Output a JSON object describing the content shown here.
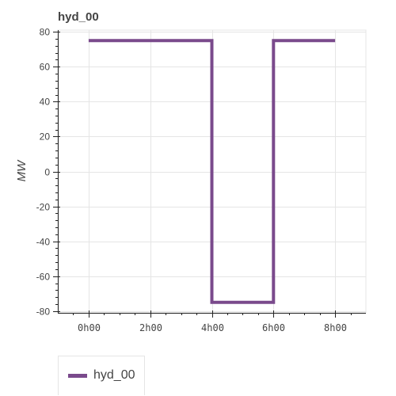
{
  "chart_data": {
    "type": "line",
    "title": "hyd_00",
    "xlabel": "",
    "ylabel": "MW",
    "x_tick_labels": [
      "0h00",
      "2h00",
      "4h00",
      "6h00",
      "8h00"
    ],
    "x_ticks_hours": [
      0,
      2,
      4,
      6,
      8
    ],
    "y_tick_labels": [
      "80",
      "60",
      "40",
      "20",
      "0",
      "-20",
      "-40",
      "-60",
      "-80"
    ],
    "y_ticks": [
      80,
      60,
      40,
      20,
      0,
      -20,
      -40,
      -60,
      -80
    ],
    "xlim_hours": [
      -1,
      9
    ],
    "ylim": [
      -81,
      81
    ],
    "grid": true,
    "legend_placement": "bottom-left",
    "series": [
      {
        "name": "hyd_00",
        "color": "#7a4a8c",
        "step": true,
        "points": [
          {
            "x_hours": 0,
            "y": 75
          },
          {
            "x_hours": 4,
            "y": 75
          },
          {
            "x_hours": 4,
            "y": -75
          },
          {
            "x_hours": 6,
            "y": -75
          },
          {
            "x_hours": 6,
            "y": 75
          },
          {
            "x_hours": 8,
            "y": 75
          }
        ]
      }
    ]
  }
}
